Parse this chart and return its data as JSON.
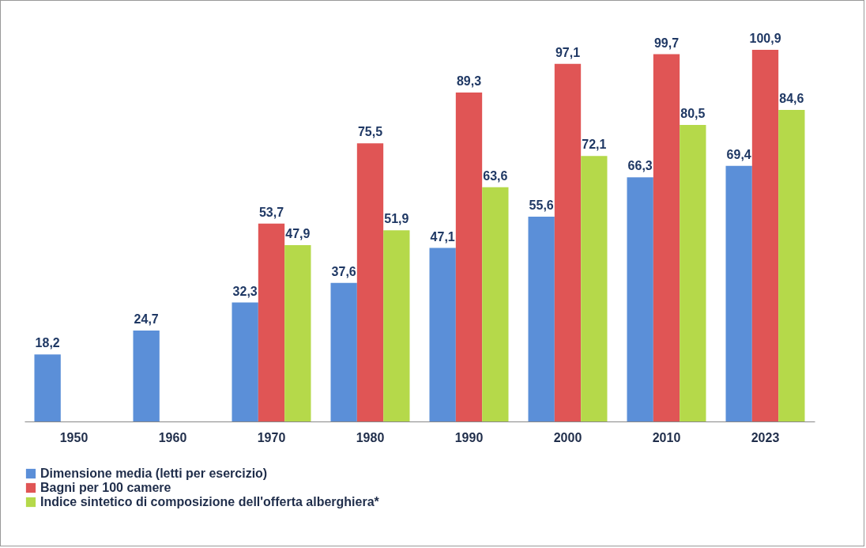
{
  "chart_data": {
    "type": "bar",
    "categories": [
      "1950",
      "1960",
      "1970",
      "1980",
      "1990",
      "2000",
      "2010",
      "2023"
    ],
    "series": [
      {
        "name": "Dimensione media (letti per esercizio)",
        "color": "#5b8fd8",
        "values": [
          18.2,
          24.7,
          32.3,
          37.6,
          47.1,
          55.6,
          66.3,
          69.4
        ],
        "value_labels": [
          "18,2",
          "24,7",
          "32,3",
          "37,6",
          "47,1",
          "55,6",
          "66,3",
          "69,4"
        ]
      },
      {
        "name": "Bagni per 100 camere",
        "color": "#e05555",
        "values": [
          null,
          null,
          53.7,
          75.5,
          89.3,
          97.1,
          99.7,
          100.9
        ],
        "value_labels": [
          null,
          null,
          "53,7",
          "75,5",
          "89,3",
          "97,1",
          "99,7",
          "100,9"
        ]
      },
      {
        "name": "Indice sintetico di composizione dell'offerta alberghiera*",
        "color": "#b5d94a",
        "values": [
          null,
          null,
          47.9,
          51.9,
          63.6,
          72.1,
          80.5,
          84.6
        ],
        "value_labels": [
          null,
          null,
          "47,9",
          "51,9",
          "63,6",
          "72,1",
          "80,5",
          "84,6"
        ]
      }
    ],
    "legend": "bottom",
    "grid": false
  }
}
